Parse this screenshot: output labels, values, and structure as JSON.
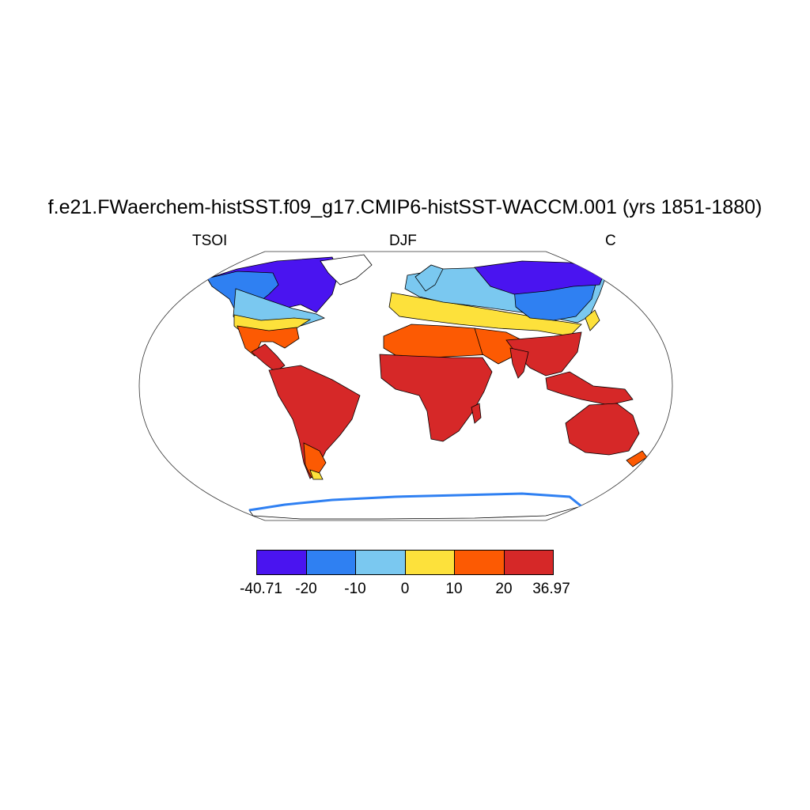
{
  "title": "f.e21.FWaerchem-histSST.f09_g17.CMIP6-histSST-WACCM.001 (yrs 1851-1880)",
  "left_label": "TSOI",
  "center_label": "DJF",
  "right_label": "C",
  "colorbar": {
    "colors": [
      "#4a14f0",
      "#2f80f2",
      "#7ac8f0",
      "#fde13b",
      "#fc5a03",
      "#d62828"
    ],
    "labels": [
      "-40.71",
      "-20",
      "-10",
      "0",
      "10",
      "20",
      "36.97"
    ]
  }
}
